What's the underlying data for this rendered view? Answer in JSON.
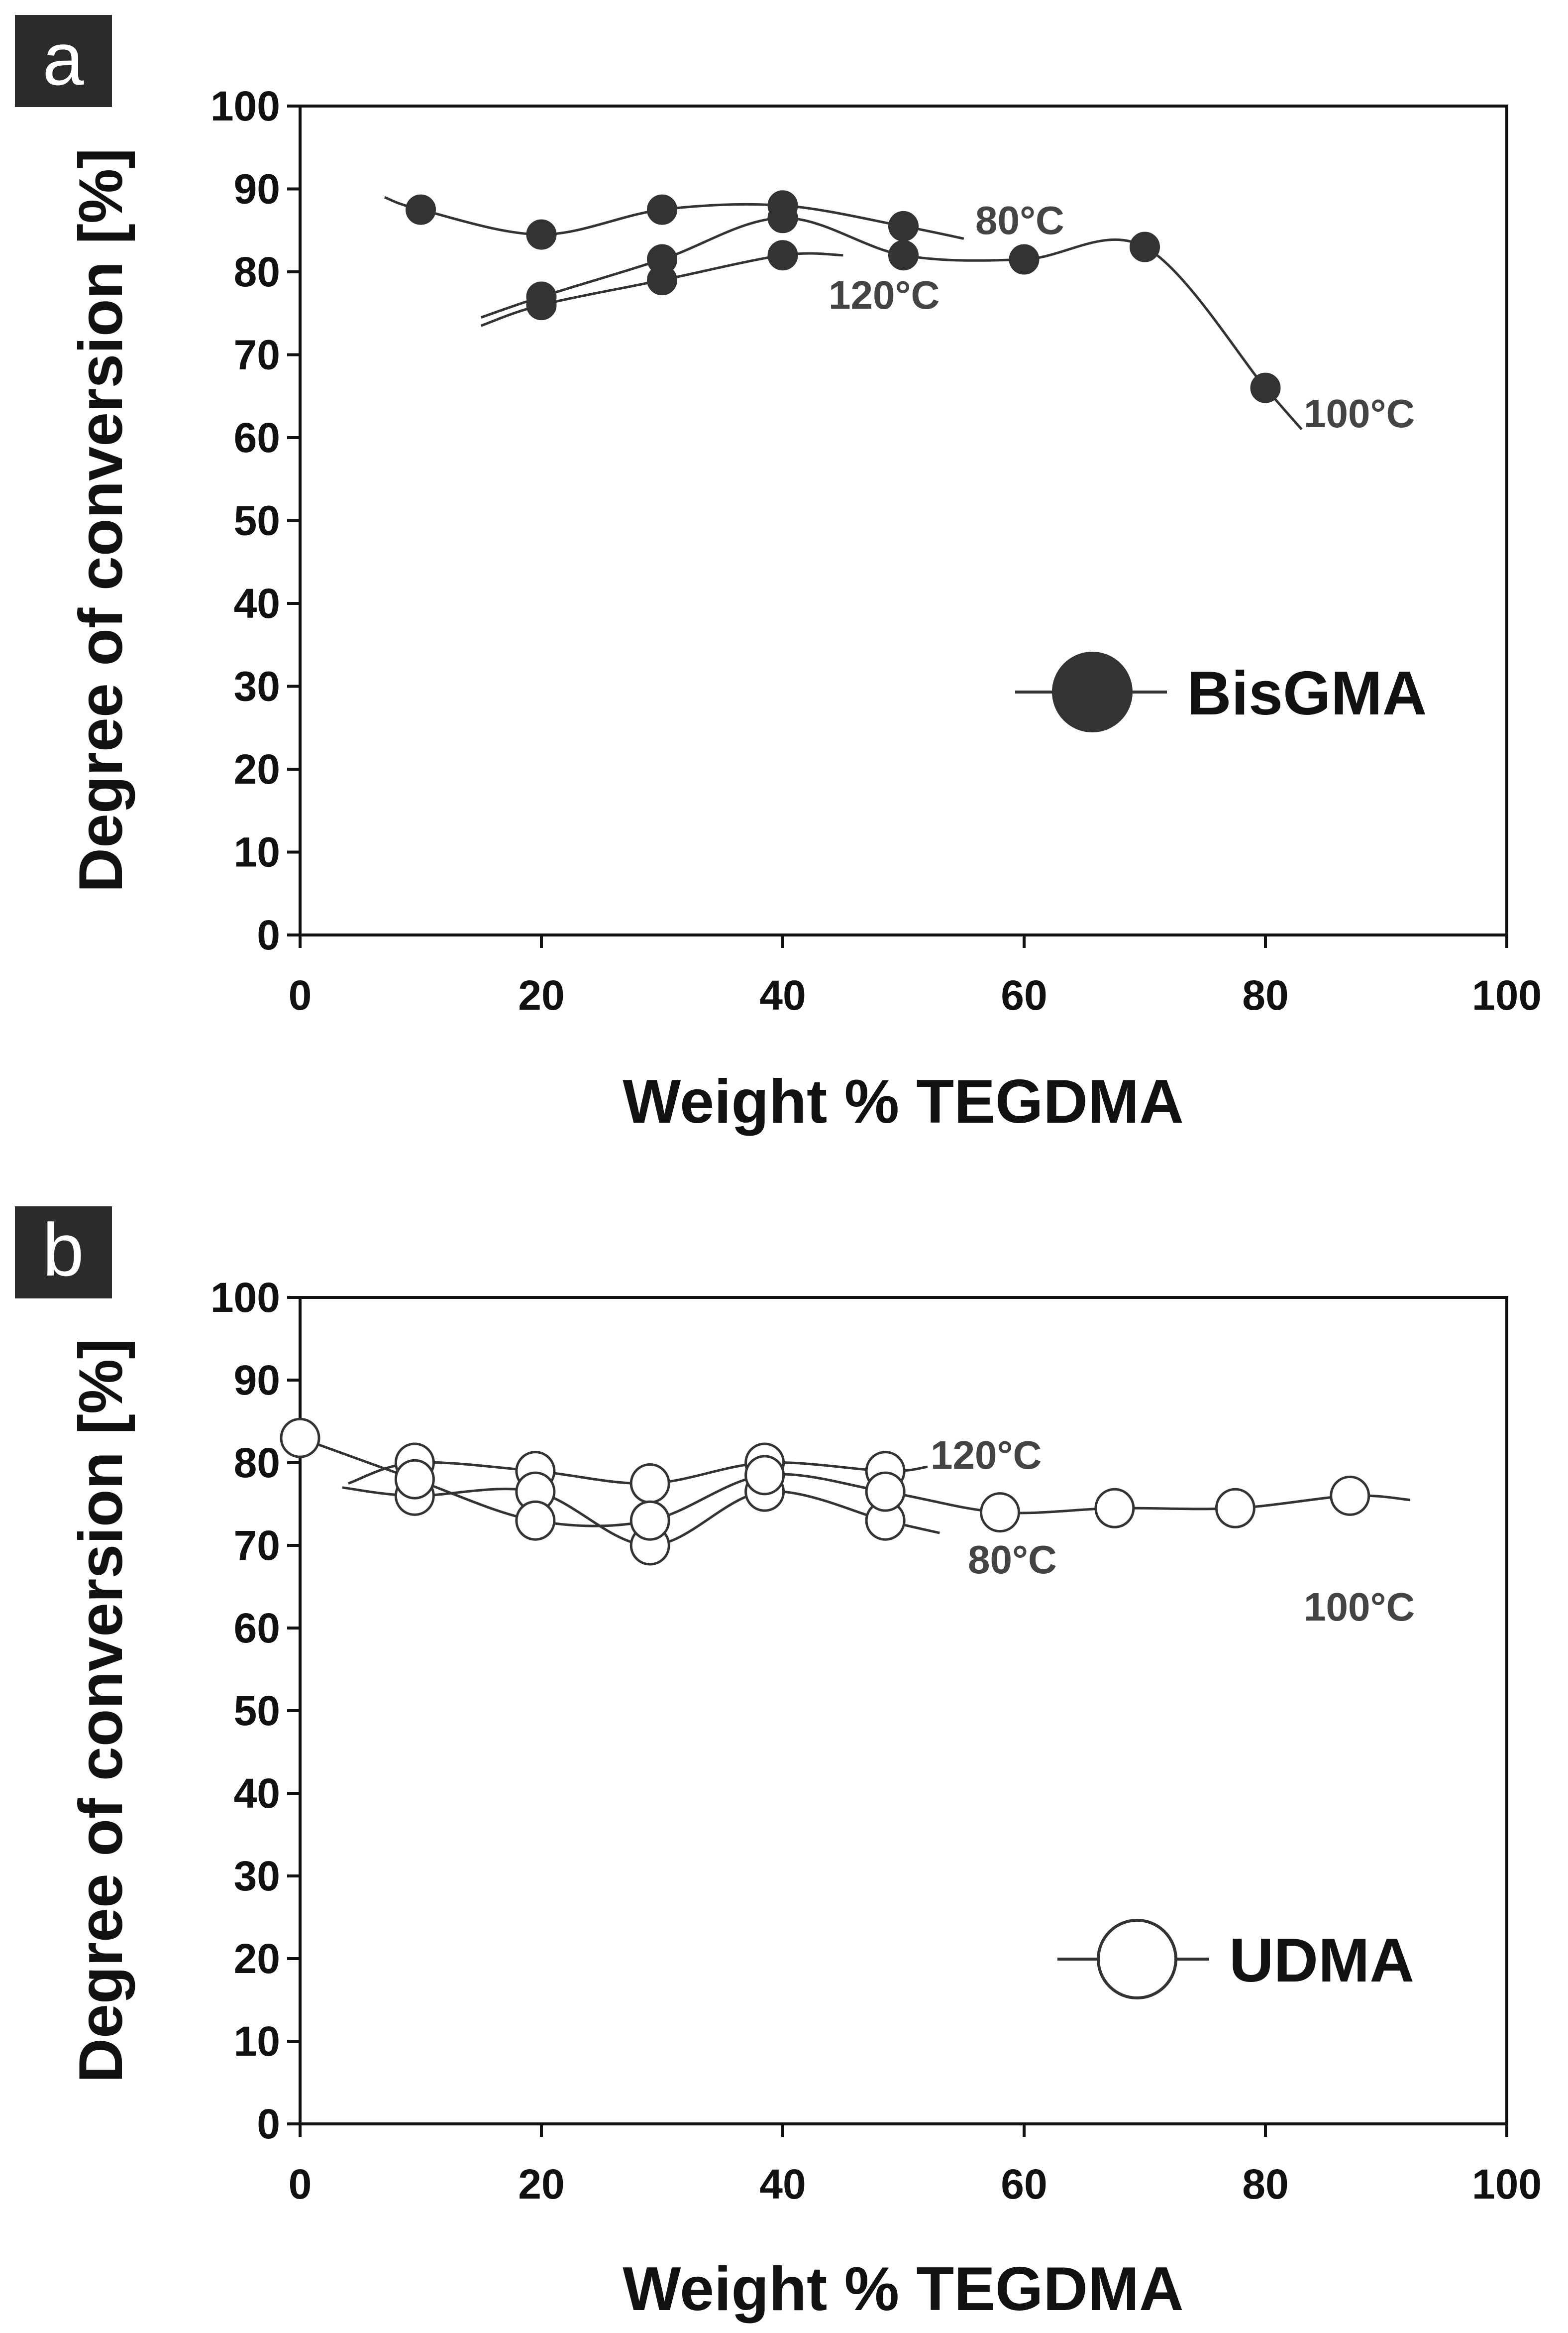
{
  "colors": {
    "marker_filled": "#333333",
    "marker_open": "#ffffff",
    "line": "#333333",
    "tag_bg": "#2b2b2b"
  },
  "chart_data": [
    {
      "panel": "a",
      "type": "line",
      "xlabel": "Weight % TEGDMA",
      "ylabel": "Degree of conversion [%]",
      "xlim": [
        0,
        100
      ],
      "ylim": [
        0,
        100
      ],
      "xticks": [
        0,
        20,
        40,
        60,
        80,
        100
      ],
      "yticks": [
        0,
        10,
        20,
        30,
        40,
        50,
        60,
        70,
        80,
        90,
        100
      ],
      "grid": false,
      "marker": "filled",
      "legend": "BisGMA",
      "series": [
        {
          "name": "80°C",
          "x": [
            10,
            20,
            30,
            40,
            50
          ],
          "y": [
            87.5,
            84.5,
            87.5,
            88,
            85.5
          ],
          "curve": [
            [
              7,
              89
            ],
            [
              10,
              87.5
            ],
            [
              20,
              84.5
            ],
            [
              30,
              87.5
            ],
            [
              40,
              88
            ],
            [
              50,
              85.5
            ],
            [
              55,
              84
            ]
          ]
        },
        {
          "name": "120°C",
          "x": [
            20,
            30,
            40
          ],
          "y": [
            76,
            79,
            82
          ],
          "curve": [
            [
              15,
              73.5
            ],
            [
              20,
              76
            ],
            [
              30,
              79
            ],
            [
              40,
              82
            ],
            [
              45,
              82
            ]
          ]
        },
        {
          "name": "100°C",
          "x": [
            20,
            30,
            40,
            50,
            60,
            70,
            80
          ],
          "y": [
            77,
            81.5,
            86.5,
            82,
            81.5,
            83,
            66
          ],
          "curve": [
            [
              15,
              74.5
            ],
            [
              20,
              77
            ],
            [
              30,
              81.5
            ],
            [
              40,
              86.5
            ],
            [
              50,
              82
            ],
            [
              60,
              81.5
            ],
            [
              70,
              83
            ],
            [
              80,
              66
            ],
            [
              83,
              61
            ]
          ]
        }
      ]
    },
    {
      "panel": "b",
      "type": "line",
      "xlabel": "Weight % TEGDMA",
      "ylabel": "Degree of conversion [%]",
      "xlim": [
        0,
        100
      ],
      "ylim": [
        0,
        100
      ],
      "xticks": [
        0,
        20,
        40,
        60,
        80,
        100
      ],
      "yticks": [
        0,
        10,
        20,
        30,
        40,
        50,
        60,
        70,
        80,
        90,
        100
      ],
      "grid": false,
      "marker": "open",
      "legend": "UDMA",
      "series": [
        {
          "name": "120°C",
          "x": [
            9.5,
            19.5,
            29,
            38.5,
            48.5
          ],
          "y": [
            80,
            79,
            77.5,
            80,
            79
          ],
          "curve": [
            [
              4,
              77.5
            ],
            [
              9.5,
              80
            ],
            [
              19.5,
              79
            ],
            [
              29,
              77.5
            ],
            [
              38.5,
              80
            ],
            [
              48.5,
              79
            ],
            [
              52,
              79.5
            ]
          ]
        },
        {
          "name": "80°C",
          "x": [
            9.5,
            19.5,
            29,
            38.5,
            48.5
          ],
          "y": [
            76,
            76.5,
            70,
            76.5,
            73
          ],
          "curve": [
            [
              3.5,
              77
            ],
            [
              9.5,
              76
            ],
            [
              19.5,
              76.5
            ],
            [
              29,
              70
            ],
            [
              38.5,
              76.5
            ],
            [
              48.5,
              73
            ],
            [
              53,
              71.5
            ]
          ]
        },
        {
          "name": "100°C",
          "x": [
            0,
            9.5,
            19.5,
            29,
            38.5,
            48.5,
            58,
            67.5,
            77.5,
            87
          ],
          "y": [
            83,
            78,
            73,
            73,
            78.5,
            76.5,
            74,
            74.5,
            74.5,
            76
          ],
          "curve": [
            [
              0,
              83
            ],
            [
              9.5,
              78
            ],
            [
              19.5,
              73
            ],
            [
              29,
              73
            ],
            [
              38.5,
              78.5
            ],
            [
              48.5,
              76.5
            ],
            [
              58,
              74
            ],
            [
              67.5,
              74.5
            ],
            [
              77.5,
              74.5
            ],
            [
              87,
              76
            ],
            [
              92,
              75.5
            ]
          ]
        }
      ]
    }
  ]
}
